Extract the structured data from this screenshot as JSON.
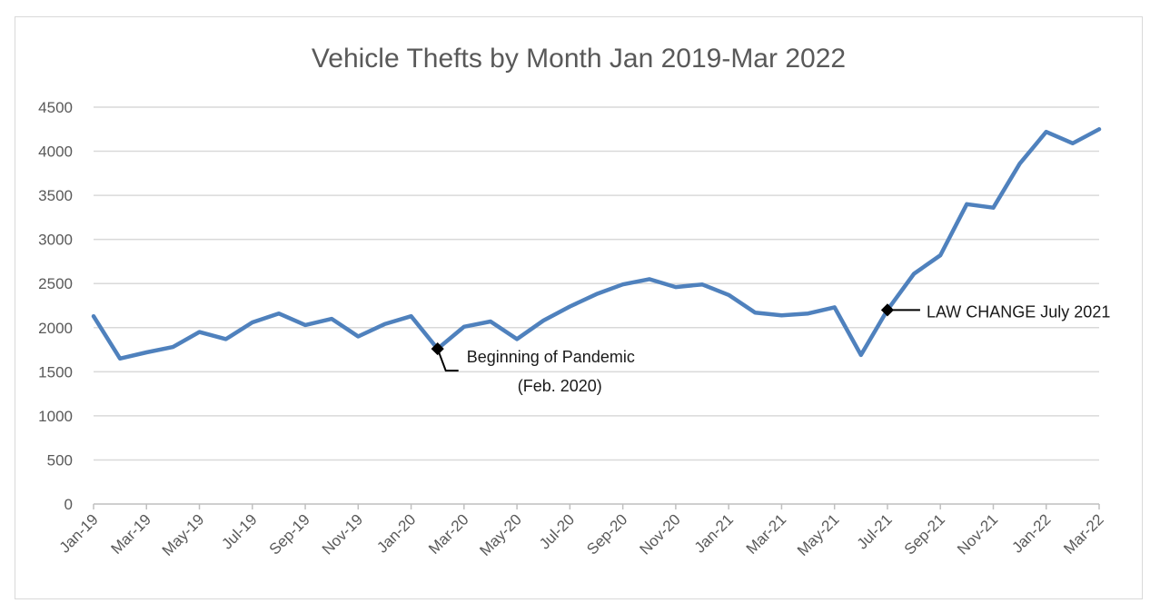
{
  "chart_data": {
    "type": "line",
    "title": "Vehicle Thefts by Month Jan 2019-Mar 2022",
    "ylim": [
      0,
      4500
    ],
    "ytick_step": 500,
    "grid": true,
    "x_tick_labels": [
      "Jan-19",
      "Mar-19",
      "May-19",
      "Jul-19",
      "Sep-19",
      "Nov-19",
      "Jan-20",
      "Mar-20",
      "May-20",
      "Jul-20",
      "Sep-20",
      "Nov-20",
      "Jan-21",
      "Mar-21",
      "May-21",
      "Jul-21",
      "Sep-21",
      "Nov-21",
      "Jan-22",
      "Mar-22"
    ],
    "x": [
      "Jan-19",
      "Feb-19",
      "Mar-19",
      "Apr-19",
      "May-19",
      "Jun-19",
      "Jul-19",
      "Aug-19",
      "Sep-19",
      "Oct-19",
      "Nov-19",
      "Dec-19",
      "Jan-20",
      "Feb-20",
      "Mar-20",
      "Apr-20",
      "May-20",
      "Jun-20",
      "Jul-20",
      "Aug-20",
      "Sep-20",
      "Oct-20",
      "Nov-20",
      "Dec-20",
      "Jan-21",
      "Feb-21",
      "Mar-21",
      "Apr-21",
      "May-21",
      "Jun-21",
      "Jul-21",
      "Aug-21",
      "Sep-21",
      "Oct-21",
      "Nov-21",
      "Dec-21",
      "Jan-22",
      "Feb-22",
      "Mar-22"
    ],
    "series": [
      {
        "color": "#4f81bd",
        "values": [
          2130,
          1650,
          1720,
          1780,
          1950,
          1870,
          2060,
          2160,
          2030,
          2100,
          1900,
          2040,
          2130,
          1760,
          2010,
          2070,
          1870,
          2080,
          2240,
          2380,
          2490,
          2550,
          2460,
          2490,
          2370,
          2170,
          2140,
          2160,
          2230,
          1690,
          2200,
          2610,
          2820,
          3400,
          3360,
          3860,
          4220,
          4090,
          4250
        ]
      }
    ],
    "annotations": [
      {
        "lines": [
          "Beginning of Pandemic",
          "(Feb. 2020)"
        ],
        "x": "Feb-20",
        "y": 1760
      },
      {
        "lines": [
          "LAW CHANGE July 2021"
        ],
        "x": "Jul-21",
        "y": 2200
      }
    ]
  }
}
